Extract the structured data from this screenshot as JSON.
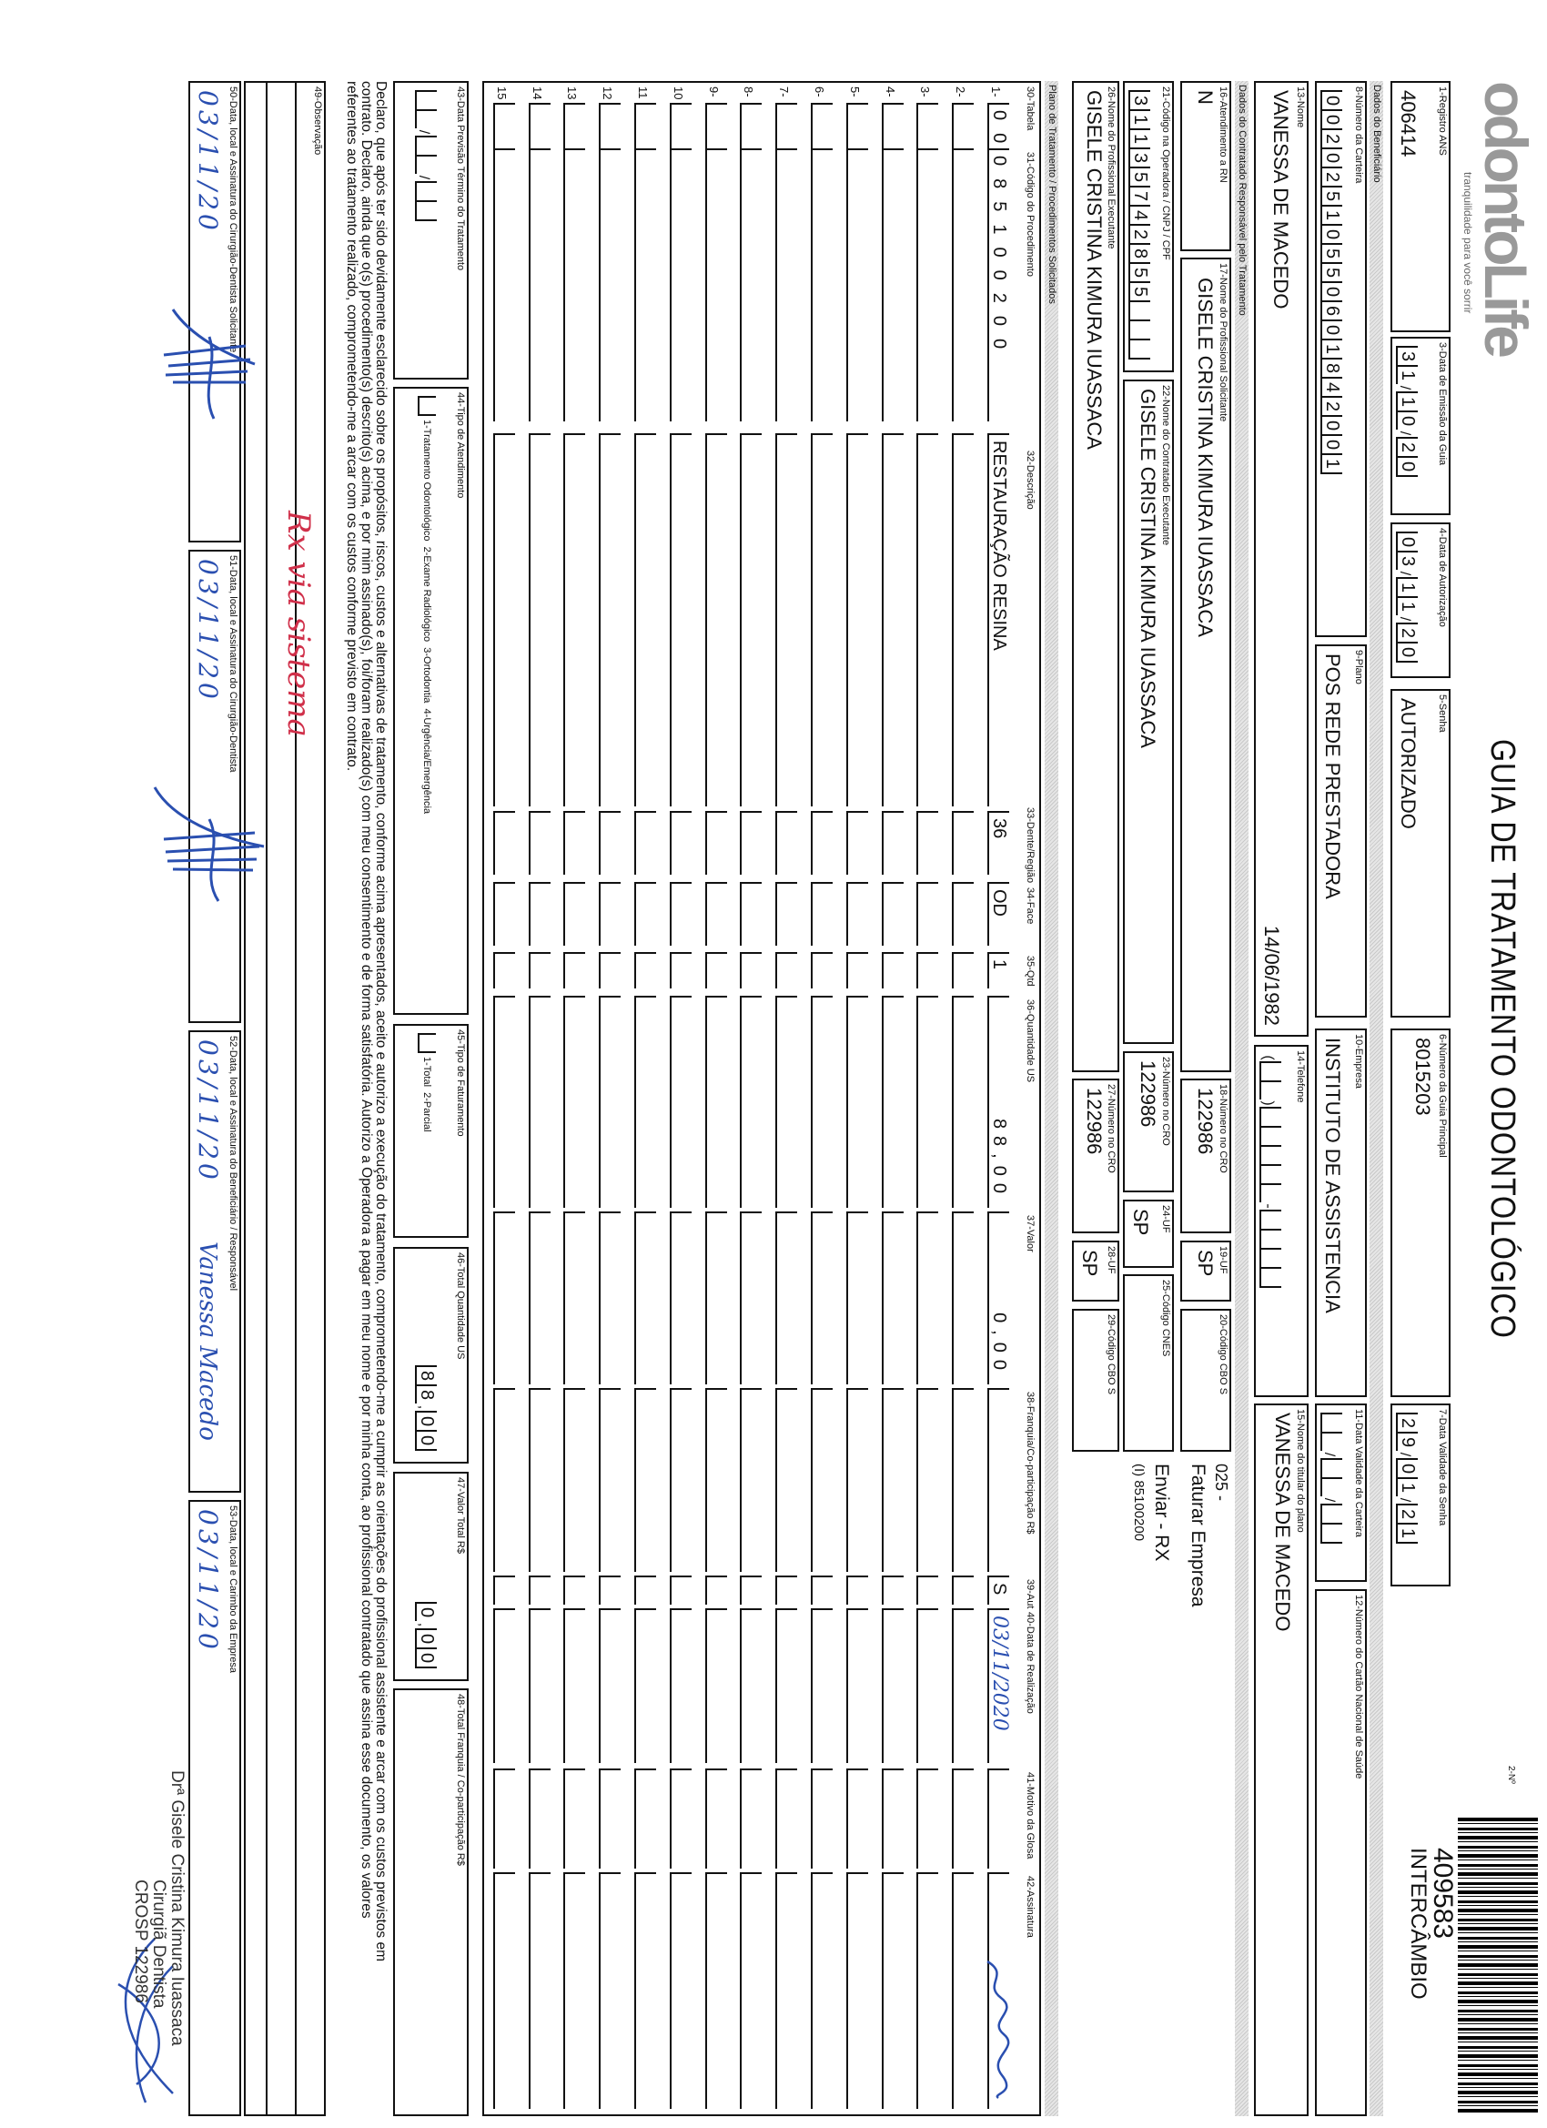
{
  "header": {
    "logo_text": "odontoLife",
    "logo_tagline": "tranquilidade para você sorrir",
    "title": "GUIA DE TRATAMENTO ODONTOLÓGICO",
    "guide_number_label": "2-Nº",
    "guide_number": "409583",
    "guide_type": "INTERCÂMBIO"
  },
  "top": {
    "f1": {
      "label": "1-Registro ANS",
      "value": "406414"
    },
    "f3": {
      "label": "3-Data de Emissão da Guia",
      "value": "31/10/20"
    },
    "f4": {
      "label": "4-Data de Autorização",
      "value": "03/11/20"
    },
    "f5": {
      "label": "5-Senha",
      "value": "AUTORIZADO"
    },
    "f6": {
      "label": "6-Número da Guia Principal",
      "value": "8015203"
    },
    "f7": {
      "label": "7-Data Validade da Senha",
      "value": "29/01/21"
    }
  },
  "beneficiario": {
    "section": "Dados do Beneficiário",
    "f8": {
      "label": "8-Número da Carteira",
      "value": "00202510550601842001"
    },
    "f9": {
      "label": "9-Plano",
      "value": "POS REDE PRESTADORA"
    },
    "f10": {
      "label": "10-Empresa",
      "value": "INSTITUTO DE ASSISTENCIA"
    },
    "f11": {
      "label": "11-Data Validade da Carteira",
      "value": "  /  /  "
    },
    "f12": {
      "label": "12-Número do Cartão Nacional de Saúde",
      "value": ""
    },
    "f13": {
      "label": "13-Nome",
      "value": "VANESSA DE MACEDO",
      "birth": "14/06/1982"
    },
    "f14": {
      "label": "14-Telefone",
      "value": "(  )     -    "
    },
    "f15": {
      "label": "15-Nome do titular do plano",
      "value": "VANESSA DE MACEDO"
    }
  },
  "contratado": {
    "section": "Dados do Contratado Responsável pelo Tratamento",
    "f16": {
      "label": "16-Atendimento a RN",
      "value": "N"
    },
    "f17": {
      "label": "17-Nome do Profissional Solicitante",
      "value": "GISELE CRISTINA KIMURA IUASSACA"
    },
    "f18": {
      "label": "18-Número no CRO",
      "value": "122986"
    },
    "f19": {
      "label": "19-UF",
      "value": "SP"
    },
    "f20": {
      "label": "20-Código CBO S",
      "value": ""
    },
    "f21": {
      "label": "21-Código na Operadora / CNPJ / CPF",
      "value": "31135742855   "
    },
    "f22": {
      "label": "22-Nome do Contratado Executante",
      "value": "GISELE CRISTINA KIMURA IUASSACA"
    },
    "f23": {
      "label": "23-Número no CRO",
      "value": "122986"
    },
    "f24": {
      "label": "24-UF",
      "value": "SP"
    },
    "f25": {
      "label": "25-Código CNES",
      "value": ""
    },
    "f26": {
      "label": "26-Nome do Profissional Executante",
      "value": "GISELE CRISTINA KIMURA IUASSACA"
    },
    "f27": {
      "label": "27-Número no CRO",
      "value": "122986"
    },
    "f28": {
      "label": "28-UF",
      "value": "SP"
    },
    "f29": {
      "label": "29-Código CBO S",
      "value": ""
    },
    "notes": [
      "025 -",
      "Faturar Empresa",
      "Enviar - RX",
      "(I) 85100200"
    ]
  },
  "procedures": {
    "section": "Plano de Tratamento / Procedimentos Solicitados",
    "headers": [
      "30-Tabela",
      "31-Código do Procedimento",
      "32-Descrição",
      "33-Dente/Região",
      "34-Face",
      "35-Qtd",
      "36-Quantidade US",
      "37-Valor",
      "38-Franquia/Co-participação R$",
      "39-Aut",
      "40-Data de Realização",
      "41-Motivo da Glosa",
      "42-Assinatura"
    ],
    "rows": [
      {
        "n": "1-",
        "tabela": "00",
        "codigo": "085100200",
        "descricao": "RESTAURAÇÃO RESINA",
        "dente": "36",
        "face": "OD",
        "qtd": "1",
        "us": "88,00",
        "valor": "0,00",
        "franquia": "",
        "aut": "S",
        "data": "03/11/2020"
      },
      {
        "n": "2-"
      },
      {
        "n": "3-"
      },
      {
        "n": "4-"
      },
      {
        "n": "5-"
      },
      {
        "n": "6-"
      },
      {
        "n": "7-"
      },
      {
        "n": "8-"
      },
      {
        "n": "9-"
      },
      {
        "n": "10"
      },
      {
        "n": "11"
      },
      {
        "n": "12"
      },
      {
        "n": "13"
      },
      {
        "n": "14"
      },
      {
        "n": "15"
      }
    ]
  },
  "totals": {
    "f43": {
      "label": "43-Data Previsão Término do Tratamento",
      "value": "  /  /  "
    },
    "f44": {
      "label": "44-Tipo de Atendimento",
      "options": "1-Tratamento Odontológico  2-Exame Radiológico  3-Ortodontia  4-Urgência/Emergência"
    },
    "f45": {
      "label": "45-Tipo de Faturamento",
      "options": "1-Total  2-Parcial"
    },
    "f46": {
      "label": "46-Total Quantidade US",
      "value": "88,00"
    },
    "f47": {
      "label": "47-Valor Total R$",
      "value": "0,00"
    },
    "f48": {
      "label": "48-Total Franquia / Co-participação R$",
      "value": ""
    }
  },
  "declaration": [
    "Declaro, que após ter sido devidamente esclarecido sobre os propósitos, riscos, custos e alternativas de tratamento, conforme acima apresentados, aceito e autorizo a execução do tratamento, comprometendo-me a cumprir as orientações do profissional assistente e arcar com os custos previstos em",
    "contrato. Declaro, ainda que o(s) procedimento(s) descrito(s) acima, e por mim assinado(s), foi/foram realizado(s) com meu consentimento e de forma satisfatória. Autorizo a Operadora a pagar em meu nome e por minha conta, ao profissional contratado que assina esse documento, os valores",
    "referentes ao tratamento realizado, comprometendo-me a arcar com os custos conforme previsto em contrato."
  ],
  "observacao": {
    "label": "49-Observação",
    "handwritten": "Rx via sistema"
  },
  "signatures": {
    "f50": {
      "label": "50-Data, local e Assinatura do Cirurgião-Dentista Solicitante",
      "date": "03/11/20"
    },
    "f51": {
      "label": "51-Data, local e Assinatura do Cirurgião-Dentista",
      "date": "03/11/20"
    },
    "f52": {
      "label": "52-Data, local e Assinatura do Beneficiário / Responsável",
      "date": "03/11/20",
      "handwritten": "Vanessa Macedo"
    },
    "f53": {
      "label": "53-Data, local e Carimbo da Empresa",
      "date": "03/11/20"
    },
    "stamp": [
      "Drª Gisele Cristina Kimura Iuassaca",
      "Cirurgiã Dentista",
      "CROSP 122986"
    ]
  },
  "colors": {
    "ink": "#111111",
    "pen_blue": "#2a4fb0",
    "pen_red": "#d0304a",
    "band_gray": "#d6d6d6"
  }
}
